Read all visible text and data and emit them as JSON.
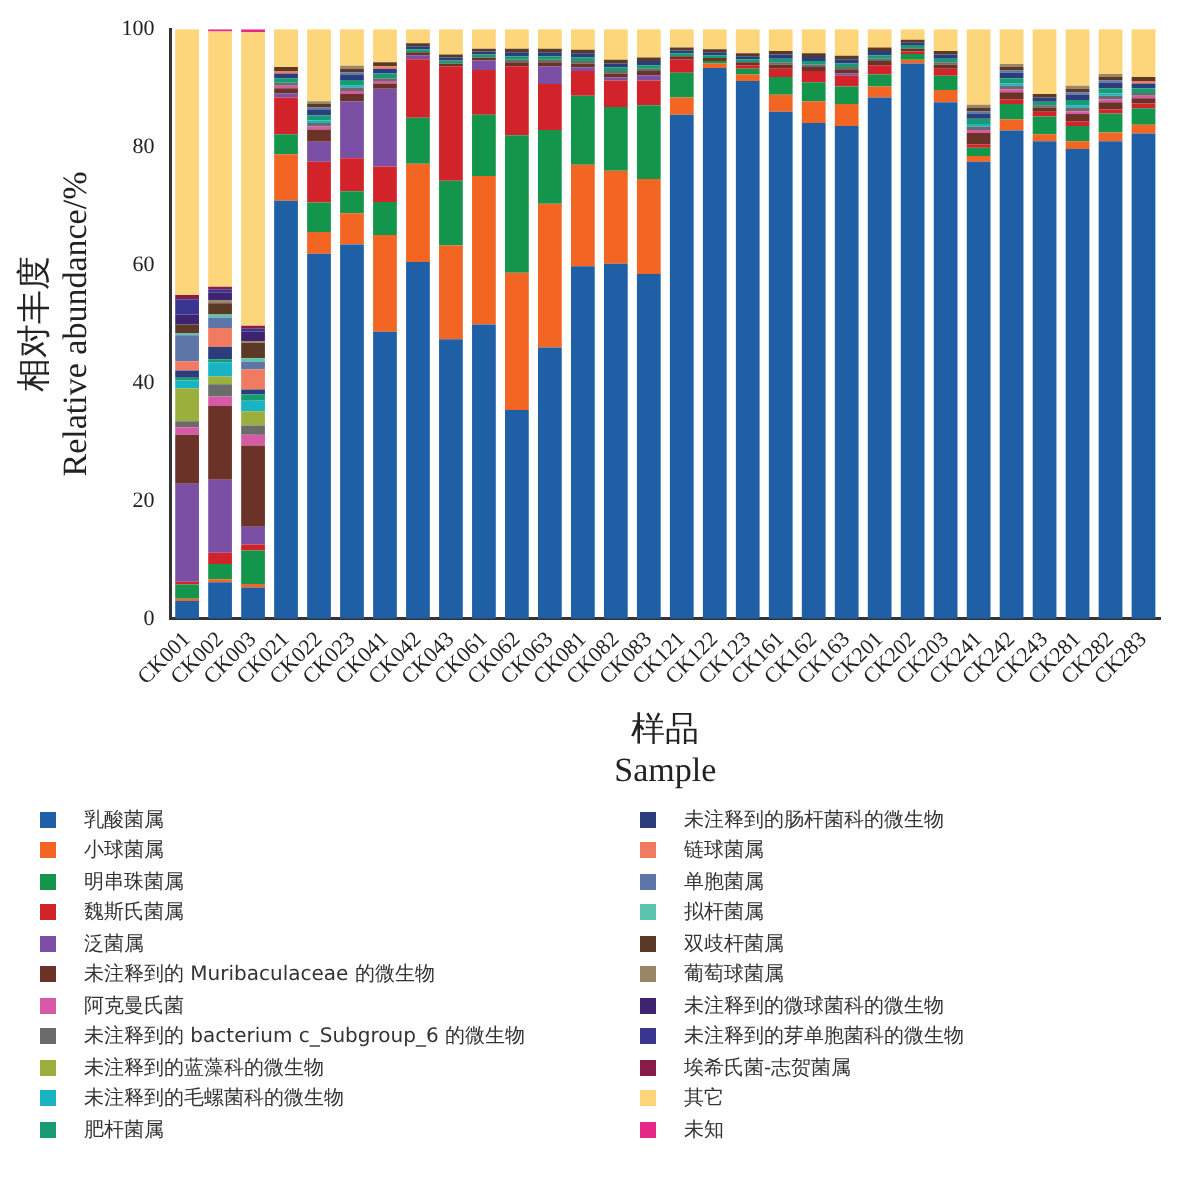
{
  "chart_data": {
    "type": "bar",
    "stacked": true,
    "xlabel": "样品\nSample",
    "ylabel": "相对丰度\nRelative abundance/%",
    "categories": [
      "CK001",
      "CK002",
      "CK003",
      "CK021",
      "CK022",
      "CK023",
      "CK041",
      "CK042",
      "CK043",
      "CK061",
      "CK062",
      "CK063",
      "CK081",
      "CK082",
      "CK083",
      "CK121",
      "CK122",
      "CK123",
      "CK161",
      "CK162",
      "CK163",
      "CK201",
      "CK202",
      "CK203",
      "CK241",
      "CK242",
      "CK243",
      "CK281",
      "CK282",
      "CK283"
    ],
    "ylim": [
      0,
      100
    ],
    "yticks": [
      0,
      20,
      40,
      60,
      80,
      100
    ],
    "grid": false,
    "legend": "bottom",
    "series": [
      {
        "name": "乳酸菌属",
        "color": "#1f5fa6",
        "values": [
          3.0,
          6.2,
          5.3,
          70.9,
          61.9,
          63.5,
          48.7,
          60.5,
          47.4,
          49.9,
          35.4,
          46.0,
          59.8,
          60.2,
          58.5,
          85.5,
          93.4,
          91.2,
          86.0,
          84.1,
          83.6,
          88.4,
          94.2,
          87.6,
          77.5,
          82.8,
          81.0,
          79.7,
          81.0,
          82.3
        ]
      },
      {
        "name": "小球菌属",
        "color": "#f26522",
        "values": [
          0.4,
          0.5,
          0.6,
          7.9,
          3.7,
          5.3,
          16.4,
          16.7,
          15.9,
          25.2,
          23.3,
          24.4,
          17.2,
          15.8,
          16.1,
          2.9,
          0.8,
          1.1,
          2.9,
          3.7,
          3.7,
          1.9,
          0.6,
          2.1,
          1.0,
          1.9,
          1.2,
          1.3,
          1.5,
          1.5
        ]
      },
      {
        "name": "明串珠菌属",
        "color": "#13964b",
        "values": [
          2.4,
          2.6,
          5.7,
          3.4,
          5.0,
          3.7,
          5.6,
          7.8,
          11.0,
          10.4,
          23.3,
          12.5,
          11.7,
          10.8,
          12.5,
          4.2,
          0.4,
          1.0,
          3.0,
          3.2,
          3.0,
          2.0,
          1.0,
          2.4,
          1.4,
          2.6,
          3.0,
          2.6,
          3.2,
          2.8
        ]
      },
      {
        "name": "魏斯氏菌属",
        "color": "#d2232a",
        "values": [
          0.5,
          1.9,
          1.0,
          6.2,
          6.9,
          5.6,
          6.0,
          9.9,
          19.4,
          7.6,
          11.7,
          7.8,
          4.2,
          4.5,
          4.2,
          2.3,
          0,
          0.6,
          1.4,
          1.9,
          1.8,
          1.6,
          0.4,
          1.2,
          0.6,
          0.8,
          0.8,
          0.8,
          0.7,
          0.8
        ]
      },
      {
        "name": "泛菌属",
        "color": "#7b4fa3",
        "values": [
          16.6,
          12.4,
          3.0,
          0.7,
          3.4,
          9.7,
          13.2,
          0.7,
          0,
          1.6,
          0,
          3.0,
          0.6,
          0.5,
          0.9,
          0,
          0,
          0,
          0,
          0,
          0.4,
          0,
          0,
          0,
          0,
          0,
          0,
          0,
          0,
          0
        ]
      },
      {
        "name": "未注释到的 Muribaculaceae 的微生物",
        "color": "#6b3228",
        "values": [
          8.3,
          12.5,
          13.8,
          0.9,
          2.1,
          1.2,
          0.9,
          0.5,
          0.5,
          0.5,
          0.7,
          0.7,
          0.7,
          0.7,
          0.7,
          0.5,
          0.5,
          0.5,
          0.7,
          0.7,
          0.7,
          0.7,
          0.5,
          0.7,
          1.9,
          1.2,
          0.7,
          1.2,
          1.2,
          0.9
        ]
      },
      {
        "name": "阿克曼氏菌",
        "color": "#d65aa6",
        "values": [
          1.3,
          1.6,
          1.8,
          0.4,
          0.5,
          0.5,
          0.4,
          0,
          0,
          0,
          0,
          0,
          0,
          0,
          0,
          0,
          0,
          0,
          0,
          0,
          0,
          0,
          0,
          0,
          0.5,
          0.5,
          0,
          0.5,
          0.5,
          0.4
        ]
      },
      {
        "name": "未注释到的 bacterium c_Subgroup_6 的微生物",
        "color": "#6a6b6b",
        "values": [
          1.0,
          2.1,
          1.6,
          0.5,
          0.6,
          0.6,
          0.5,
          0,
          0,
          0,
          0.4,
          0.4,
          0.4,
          0.4,
          0.4,
          0,
          0,
          0,
          0.4,
          0.4,
          0.4,
          0.4,
          0,
          0.4,
          0.6,
          0.6,
          0.4,
          0.6,
          0.6,
          0.5
        ]
      },
      {
        "name": "未注释到的蓝藻科的微生物",
        "color": "#9bb03c",
        "values": [
          5.6,
          1.3,
          2.4,
          0,
          0,
          0,
          0,
          0,
          0,
          0,
          0,
          0,
          0,
          0,
          0,
          0,
          0,
          0,
          0,
          0,
          0,
          0,
          0,
          0,
          0,
          0,
          0,
          0,
          0,
          0
        ]
      },
      {
        "name": "未注释到的毛螺菌科的微生物",
        "color": "#19b4c4",
        "values": [
          1.3,
          2.4,
          1.8,
          0,
          0.4,
          0.4,
          0,
          0,
          0,
          0,
          0,
          0,
          0,
          0,
          0,
          0,
          0,
          0,
          0,
          0,
          0,
          0,
          0,
          0,
          0.4,
          0.4,
          0,
          0.4,
          0.4,
          0
        ]
      },
      {
        "name": "肥杆菌属",
        "color": "#179b72",
        "values": [
          0.5,
          0.5,
          1.1,
          0.8,
          0.9,
          0.9,
          0.8,
          0.5,
          0.5,
          0.5,
          0.6,
          0.6,
          0.6,
          0.6,
          0.6,
          0.5,
          0.5,
          0.5,
          0.6,
          0.6,
          0.6,
          0.6,
          0.5,
          0.6,
          0.9,
          0.9,
          0.6,
          0.9,
          0.9,
          0.8
        ]
      },
      {
        "name": "未注释到的肠杆菌科的微生物",
        "color": "#2b3d7d",
        "values": [
          1.2,
          2.1,
          0.8,
          0.8,
          0.9,
          0.9,
          0.8,
          0.5,
          0.5,
          0.5,
          0.7,
          0.7,
          0.7,
          0.7,
          0.7,
          0.5,
          0.5,
          0.5,
          0.7,
          0.7,
          0.7,
          0.7,
          0.5,
          0.7,
          0.9,
          0.9,
          0.7,
          0.9,
          0.9,
          0.8
        ]
      },
      {
        "name": "链球菌属",
        "color": "#f07b60",
        "values": [
          1.6,
          3.2,
          3.4,
          0.4,
          0,
          0,
          0.4,
          0,
          0,
          0,
          0,
          0,
          0,
          0,
          0,
          0,
          0,
          0,
          0,
          0,
          0,
          0,
          0,
          0,
          0,
          0,
          0,
          0,
          0,
          0.4
        ]
      },
      {
        "name": "单胞菌属",
        "color": "#5e75a8",
        "values": [
          4.4,
          1.8,
          1.3,
          0,
          0.4,
          0.4,
          0,
          0,
          0,
          0,
          0,
          0,
          0,
          0,
          0,
          0,
          0,
          0,
          0,
          0,
          0,
          0,
          0,
          0,
          0.4,
          0.4,
          0,
          0.4,
          0.4,
          0
        ]
      },
      {
        "name": "拟杆菌属",
        "color": "#5cc4ad",
        "values": [
          0.3,
          0.5,
          0.6,
          0,
          0,
          0,
          0,
          0,
          0,
          0,
          0,
          0,
          0,
          0,
          0,
          0,
          0,
          0,
          0,
          0,
          0,
          0,
          0,
          0,
          0,
          0,
          0,
          0,
          0,
          0
        ]
      },
      {
        "name": "双歧杆菌属",
        "color": "#5a3a25",
        "values": [
          1.5,
          1.9,
          2.6,
          0.7,
          0.6,
          0.6,
          0.7,
          0.5,
          0.5,
          0.5,
          0.6,
          0.6,
          0.6,
          0.6,
          0.6,
          0.5,
          0.5,
          0.5,
          0.6,
          0.6,
          0.6,
          0.6,
          0.5,
          0.6,
          0.6,
          0.6,
          0.6,
          0.6,
          0.6,
          0.7
        ]
      },
      {
        "name": "葡萄球菌属",
        "color": "#9a8566",
        "values": [
          0,
          0.5,
          0.3,
          0,
          0.5,
          0.5,
          0,
          0,
          0,
          0,
          0,
          0,
          0,
          0,
          0,
          0,
          0,
          0,
          0,
          0,
          0,
          0,
          0,
          0,
          0.5,
          0.5,
          0,
          0.5,
          0.5,
          0
        ]
      },
      {
        "name": "未注释到的微球菌科的微生物",
        "color": "#3d2370",
        "values": [
          1.7,
          1.3,
          1.6,
          0,
          0,
          0,
          0,
          0,
          0,
          0,
          0,
          0,
          0,
          0,
          0,
          0,
          0,
          0,
          0,
          0,
          0,
          0,
          0,
          0,
          0,
          0,
          0,
          0,
          0,
          0
        ]
      },
      {
        "name": "未注释到的芽单胞菌科的微生物",
        "color": "#3a3590",
        "values": [
          2.6,
          0.6,
          0.5,
          0,
          0,
          0,
          0,
          0,
          0,
          0,
          0,
          0,
          0,
          0,
          0,
          0,
          0,
          0,
          0,
          0,
          0,
          0,
          0,
          0,
          0,
          0,
          0,
          0,
          0,
          0
        ]
      },
      {
        "name": "埃希氏菌-志贺菌属",
        "color": "#8a1c4a",
        "values": [
          0.7,
          0.4,
          0.5,
          0,
          0,
          0,
          0,
          0,
          0,
          0,
          0,
          0,
          0,
          0,
          0,
          0,
          0,
          0,
          0,
          0,
          0,
          0,
          0,
          0,
          0,
          0,
          0,
          0,
          0,
          0
        ]
      },
      {
        "name": "其它",
        "color": "#fdd57a",
        "values": [
          45.1,
          43.3,
          49.8,
          6.4,
          12.2,
          6.2,
          5.6,
          2.4,
          4.3,
          3.3,
          3.3,
          3.3,
          3.5,
          5.2,
          4.8,
          3.1,
          3.4,
          4.1,
          3.7,
          4.1,
          4.5,
          3.1,
          1.8,
          3.7,
          12.8,
          5.9,
          11.0,
          9.6,
          7.6,
          8.1
        ]
      },
      {
        "name": "未知",
        "color": "#e52886",
        "values": [
          0,
          0.4,
          0.5,
          0,
          0,
          0,
          0,
          0,
          0,
          0,
          0,
          0,
          0,
          0,
          0,
          0,
          0,
          0,
          0,
          0,
          0,
          0,
          0,
          0,
          0,
          0,
          0,
          0,
          0,
          0
        ]
      }
    ]
  }
}
